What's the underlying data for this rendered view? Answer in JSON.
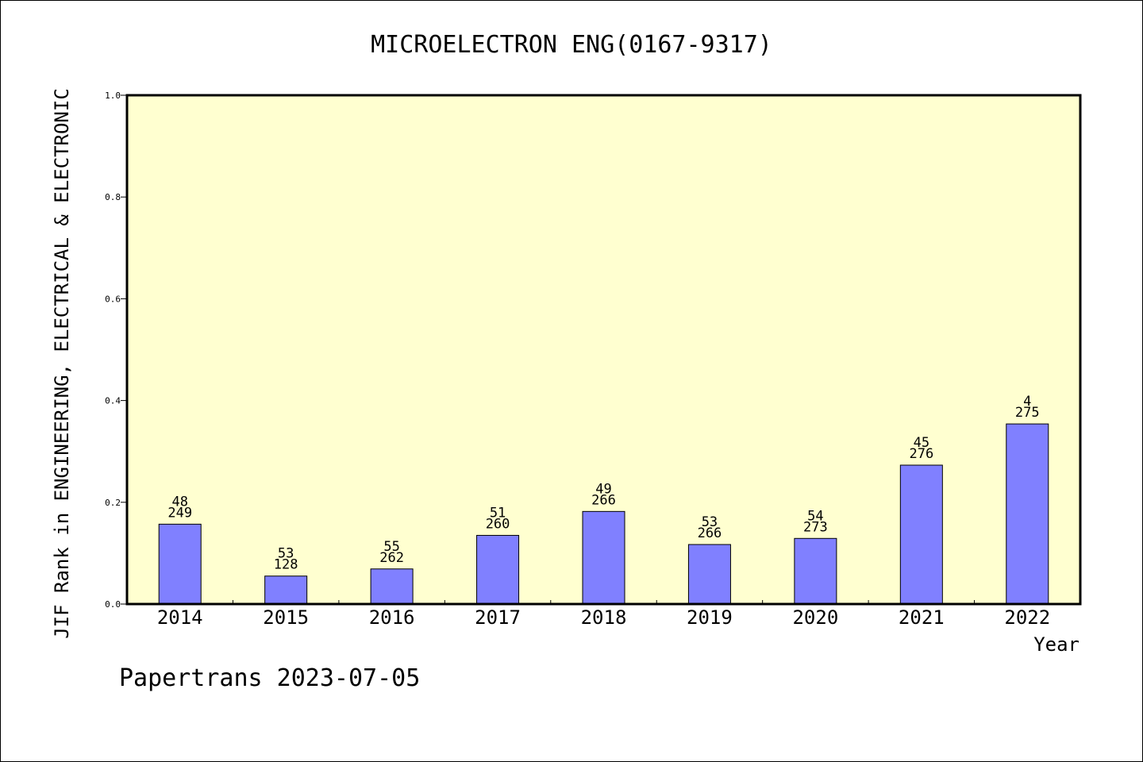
{
  "chart_data": {
    "type": "bar",
    "title": "MICROELECTRON ENG(0167-9317)",
    "xlabel": "Year",
    "ylabel": "JIF Rank in ENGINEERING, ELECTRICAL & ELECTRONIC",
    "ylim": [
      0,
      1.0
    ],
    "yticks": [
      "0.0",
      "0.2",
      "0.4",
      "0.6",
      "0.8",
      "1.0"
    ],
    "categories": [
      "2014",
      "2015",
      "2016",
      "2017",
      "2018",
      "2019",
      "2020",
      "2021",
      "2022"
    ],
    "values": [
      0.157,
      0.055,
      0.069,
      0.135,
      0.182,
      0.117,
      0.129,
      0.273,
      0.354
    ],
    "labels_top": [
      "48",
      "53",
      "55",
      "51",
      "49",
      "53",
      "54",
      "45",
      "4"
    ],
    "labels_bottom": [
      "249",
      "128",
      "262",
      "260",
      "266",
      "266",
      "273",
      "276",
      "275"
    ],
    "grid": false,
    "plot_background": "#ffffd0",
    "bar_color": "#8080ff"
  },
  "footer": "Papertrans 2023-07-05"
}
